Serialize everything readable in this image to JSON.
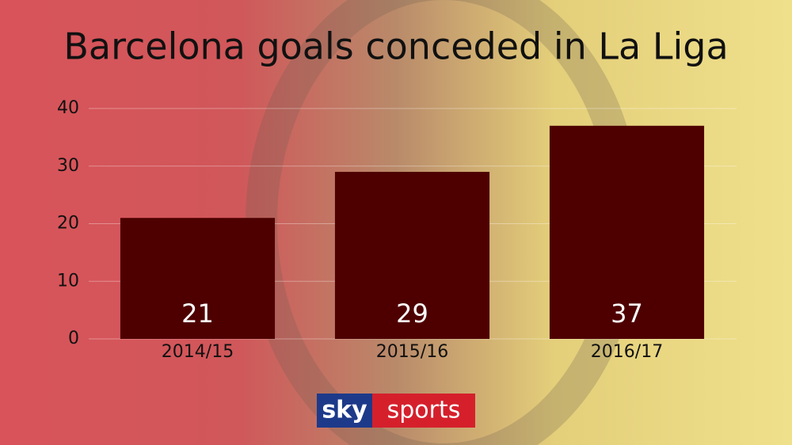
{
  "chart_data": {
    "type": "bar",
    "title": "Barcelona goals conceded in La Liga",
    "categories": [
      "2014/15",
      "2015/16",
      "2016/17"
    ],
    "values": [
      21,
      29,
      37
    ],
    "color": "#4e0000",
    "ylim": [
      0,
      40
    ],
    "yticks": [
      0,
      10,
      20,
      30,
      40
    ],
    "grid": true
  },
  "logo": {
    "left": "sky",
    "right": "sports"
  }
}
